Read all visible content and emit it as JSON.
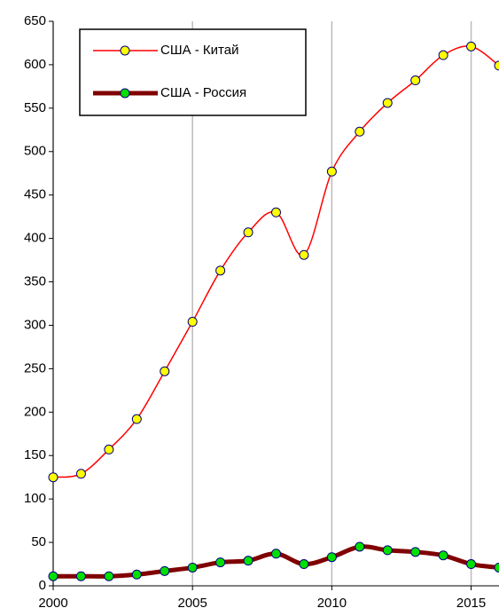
{
  "chart_data": {
    "type": "line",
    "x": [
      2000,
      2001,
      2002,
      2003,
      2004,
      2005,
      2006,
      2007,
      2008,
      2009,
      2010,
      2011,
      2012,
      2013,
      2014,
      2015,
      2016
    ],
    "series": [
      {
        "name": "США - Китай",
        "color": "#ff0000",
        "marker_color": "#ffff00",
        "values": [
          125,
          129,
          157,
          192,
          247,
          304,
          363,
          407,
          430,
          381,
          477,
          523,
          556,
          582,
          611,
          621,
          599
        ]
      },
      {
        "name": "США - Россия",
        "color": "#800000",
        "marker_color": "#00e000",
        "values": [
          11,
          11,
          11,
          13,
          17,
          21,
          27,
          29,
          37,
          25,
          33,
          45,
          41,
          39,
          35,
          25,
          21
        ]
      }
    ],
    "xlim": [
      2000,
      2016
    ],
    "xticks": [
      2000,
      2005,
      2010,
      2015
    ],
    "ylim": [
      0,
      650
    ],
    "yticks": [
      0,
      50,
      100,
      150,
      200,
      250,
      300,
      350,
      400,
      450,
      500,
      550,
      600,
      650
    ],
    "grid": true
  }
}
